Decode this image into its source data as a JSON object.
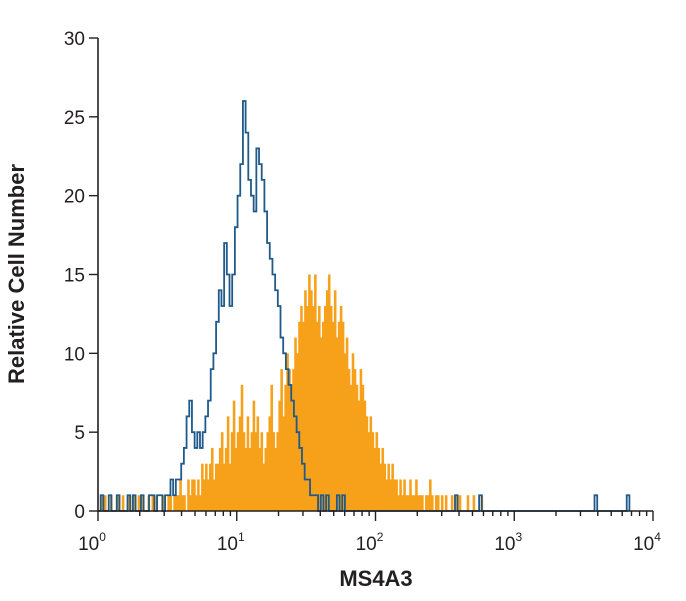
{
  "chart_data": {
    "type": "histogram",
    "xlabel": "MS4A3",
    "ylabel": "Relative Cell Number",
    "x_scale": "log",
    "xlim": [
      1,
      10000
    ],
    "ylim": [
      0,
      30
    ],
    "x_ticks": [
      {
        "value": 1,
        "base": "10",
        "exp": "0"
      },
      {
        "value": 10,
        "base": "10",
        "exp": "1"
      },
      {
        "value": 100,
        "base": "10",
        "exp": "2"
      },
      {
        "value": 1000,
        "base": "10",
        "exp": "3"
      },
      {
        "value": 10000,
        "base": "10",
        "exp": "4"
      }
    ],
    "y_ticks": [
      "0",
      "5",
      "10",
      "15",
      "20",
      "25",
      "30"
    ],
    "colors": {
      "filled": "#f7a11a",
      "outline": "#1f5a8a",
      "axis": "#231f20"
    },
    "series": [
      {
        "style": "filled",
        "bin_edges_log10": [
          0,
          2.8
        ],
        "counts": [
          0,
          1,
          0,
          1,
          0,
          0,
          1,
          0,
          0,
          1,
          1,
          0,
          1,
          0,
          0,
          1,
          0,
          1,
          1,
          0,
          1,
          0,
          1,
          0,
          0,
          1,
          0,
          1,
          0,
          1,
          0,
          0,
          1,
          1,
          0,
          1,
          1,
          0,
          1,
          1,
          1,
          2,
          1,
          1,
          0,
          2,
          1,
          2,
          2,
          1,
          2,
          1,
          3,
          2,
          3,
          2,
          3,
          4,
          2,
          3,
          3,
          4,
          5,
          3,
          4,
          6,
          3,
          5,
          7,
          4,
          5,
          6,
          8,
          5,
          4,
          6,
          4,
          5,
          7,
          5,
          6,
          4,
          5,
          3,
          4,
          5,
          6,
          8,
          5,
          4,
          5,
          7,
          9,
          6,
          8,
          10,
          9,
          8,
          9,
          11,
          10,
          12,
          13,
          12,
          14,
          13,
          15,
          14,
          13,
          15,
          12,
          13,
          11,
          12,
          13,
          14,
          15,
          13,
          12,
          14,
          11,
          12,
          13,
          12,
          10,
          11,
          9,
          8,
          10,
          9,
          8,
          7,
          9,
          8,
          7,
          6,
          5,
          6,
          5,
          4,
          5,
          4,
          3,
          4,
          3,
          2,
          3,
          2,
          3,
          2,
          2,
          1,
          2,
          1,
          2,
          1,
          1,
          2,
          1,
          1,
          2,
          1,
          1,
          1,
          0,
          1,
          1,
          2,
          1,
          0,
          1,
          1,
          0,
          1,
          0,
          1,
          0,
          0,
          1,
          0,
          1,
          0,
          1,
          0,
          0,
          0,
          1,
          0,
          0,
          1,
          0,
          0,
          0,
          1,
          0,
          0
        ]
      },
      {
        "style": "outline",
        "bin_edges_log10": [
          0,
          3.83
        ],
        "counts": [
          0,
          1,
          0,
          0,
          1,
          0,
          0,
          1,
          0,
          0,
          0,
          1,
          0,
          1,
          0,
          0,
          1,
          0,
          0,
          1,
          1,
          0,
          1,
          1,
          0,
          1,
          1,
          2,
          1,
          2,
          2,
          3,
          4,
          6,
          7,
          5,
          4,
          5,
          4,
          5,
          6,
          7,
          9,
          10,
          12,
          14,
          13,
          17,
          15,
          13,
          15,
          18,
          20,
          22,
          26,
          24,
          21,
          20,
          19,
          23,
          22,
          21,
          19,
          17,
          16,
          15,
          14,
          13,
          11,
          10,
          9,
          8,
          7,
          6,
          5,
          4,
          3,
          2,
          2,
          1,
          1,
          1,
          0,
          1,
          0,
          1,
          0,
          0,
          0,
          1,
          0,
          1,
          0,
          0,
          0,
          0,
          0,
          0,
          0,
          0,
          0,
          0,
          0,
          0,
          0,
          0,
          0,
          0,
          0,
          0,
          0,
          0,
          0,
          0,
          0,
          0,
          0,
          0,
          0,
          0,
          0,
          0,
          0,
          0,
          0,
          0,
          0,
          0,
          0,
          0,
          0,
          0,
          0,
          1,
          0,
          0,
          0,
          0,
          0,
          0,
          0,
          0,
          1,
          0,
          0,
          0,
          0,
          0,
          0,
          0,
          0,
          0,
          0,
          0,
          0,
          0,
          0,
          0,
          0,
          0,
          0,
          0,
          0,
          0,
          0,
          0,
          0,
          0,
          0,
          0,
          0,
          0,
          0,
          0,
          0,
          0,
          0,
          0,
          0,
          0,
          0,
          0,
          0,
          0,
          0,
          1,
          0,
          0,
          0,
          0,
          0,
          0,
          0,
          0,
          0,
          0,
          0,
          1
        ]
      }
    ]
  }
}
